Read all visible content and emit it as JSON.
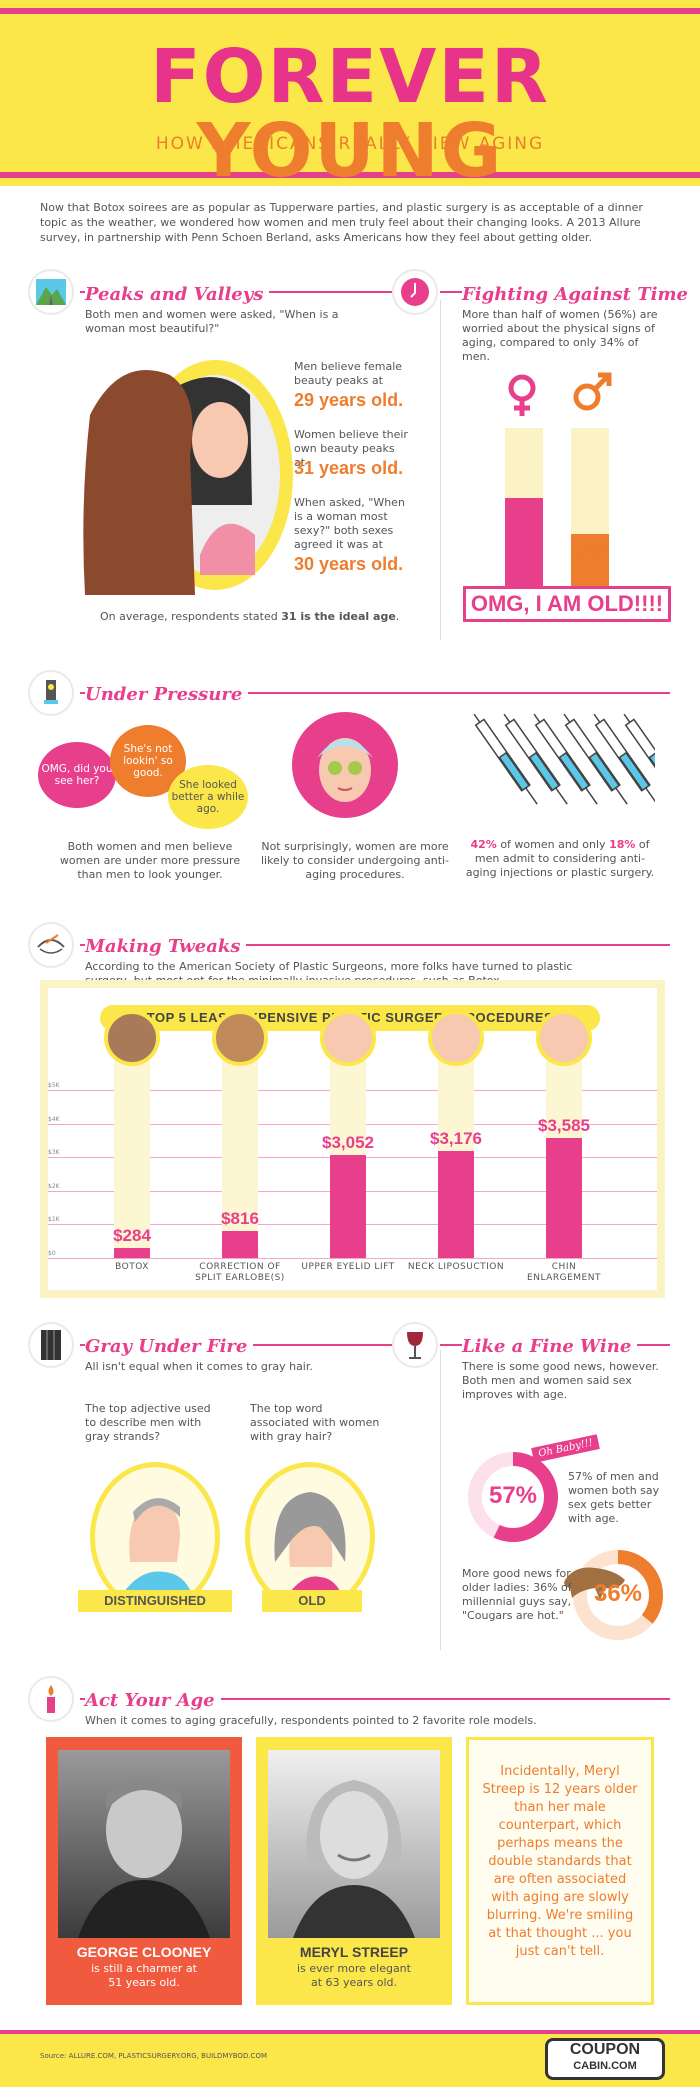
{
  "header": {
    "title_part1": "FOREVER",
    "title_part2": "YOUNG",
    "subtitle": "HOW AMERICANS REALLY VIEW AGING"
  },
  "intro": "Now that Botox soirees are as popular as Tupperware parties, and plastic surgery is as acceptable of a dinner topic as the weather, we wondered how women and men truly feel about their changing looks. A 2013 Allure survey, in partnership with Penn Schoen Berland, asks Americans how they feel about getting older.",
  "peaks": {
    "title": "Peaks and Valleys",
    "question": "Both men and women were asked, \"When is a woman most beautiful?\"",
    "men_text": "Men believe female beauty peaks at",
    "men_age": "29 years old.",
    "women_text": "Women believe their own beauty peaks at",
    "women_age": "31 years old.",
    "sexy_text": "When asked, \"When is a woman most sexy?\" both sexes agreed it was at",
    "sexy_age": "30 years old.",
    "avg_text": "On average, respondents stated",
    "avg_bold": "31 is the ideal age",
    "avg_end": "."
  },
  "fighting": {
    "title": "Fighting Against Time",
    "text": "More than half of women (56%) are worried about the physical signs of aging, compared to only 34% of men.",
    "women_pct_label": "56%",
    "men_pct_label": "34%",
    "women_value": 56,
    "men_value": 34,
    "banner": "OMG, I AM OLD!!!!"
  },
  "pressure": {
    "title": "Under Pressure",
    "bubble1": "OMG, did you see her?",
    "bubble2": "She's not lookin' so good.",
    "bubble3": "She looked better a while ago.",
    "col1": "Both women and men believe women are under more pressure than men to look younger.",
    "col2": "Not surprisingly, women are more likely to consider undergoing anti-aging procedures.",
    "col3_pct_women": "42%",
    "col3_a": "of women and only",
    "col3_pct_men": "18%",
    "col3_b": "of men admit to considering anti-aging injections or plastic surgery."
  },
  "tweaks": {
    "title": "Making Tweaks",
    "text": "According to the American Society of Plastic Surgeons, more folks have turned to plastic surgery, but most opt for the minimally invasive procedures, such as Botox."
  },
  "chart_data": {
    "type": "bar",
    "title": "TOP 5 LEAST EXPENSIVE PLASTIC SURGERY PROCEDURES",
    "categories": [
      "BOTOX",
      "CORRECTION OF SPLIT EARLOBE(S)",
      "UPPER EYELID LIFT",
      "NECK LIPOSUCTION",
      "CHIN ENLARGEMENT"
    ],
    "values": [
      284,
      816,
      3052,
      3176,
      3585
    ],
    "labels": [
      "$284",
      "$816",
      "$3,052",
      "$3,176",
      "$3,585"
    ],
    "yticks": [
      "$5K",
      "$4K",
      "$3K",
      "$2K",
      "$1K",
      "$0"
    ],
    "ylim": [
      0,
      5000
    ]
  },
  "gray": {
    "title": "Gray Under Fire",
    "text": "All isn't equal when it comes to gray hair.",
    "men_q": "The top adjective used to describe men with gray strands?",
    "women_q": "The top word associated with women with gray hair?",
    "men_word": "DISTINGUISHED",
    "women_word": "OLD"
  },
  "wine": {
    "title": "Like a Fine Wine",
    "text": "There is some good news, however. Both men and women said sex improves with age.",
    "tag": "Oh Baby!!!",
    "pct1": "57%",
    "pct1_value": 57,
    "text1": "57% of men and women both say sex gets better with age.",
    "pct2": "36%",
    "pct2_value": 36,
    "text2": "More good news for older ladies: 36% of millennial guys say, \"Cougars are hot.\""
  },
  "age": {
    "title": "Act Your Age",
    "text": "When it comes to aging gracefully, respondents pointed to 2 favorite role models.",
    "p1_name": "GEORGE CLOONEY",
    "p1_desc": "is still a charmer at 51 years old.",
    "p2_name": "MERYL STREEP",
    "p2_desc": "is ever more elegant at 63 years old.",
    "note": "Incidentally, Meryl Streep is 12 years older than her male counterpart, which perhaps means the double standards that are often associated with aging are slowly blurring. We're smiling at that thought ... you just can't tell."
  },
  "footer": {
    "source": "Source: ALLURE.COM, PLASTICSURGERY.ORG, BUILDMYBOD.COM",
    "logo_top": "COUPON",
    "logo_bottom": "CABIN.COM"
  },
  "colors": {
    "pink": "#e83f8c",
    "orange": "#ee7d2e",
    "yellow": "#fbe74a"
  }
}
